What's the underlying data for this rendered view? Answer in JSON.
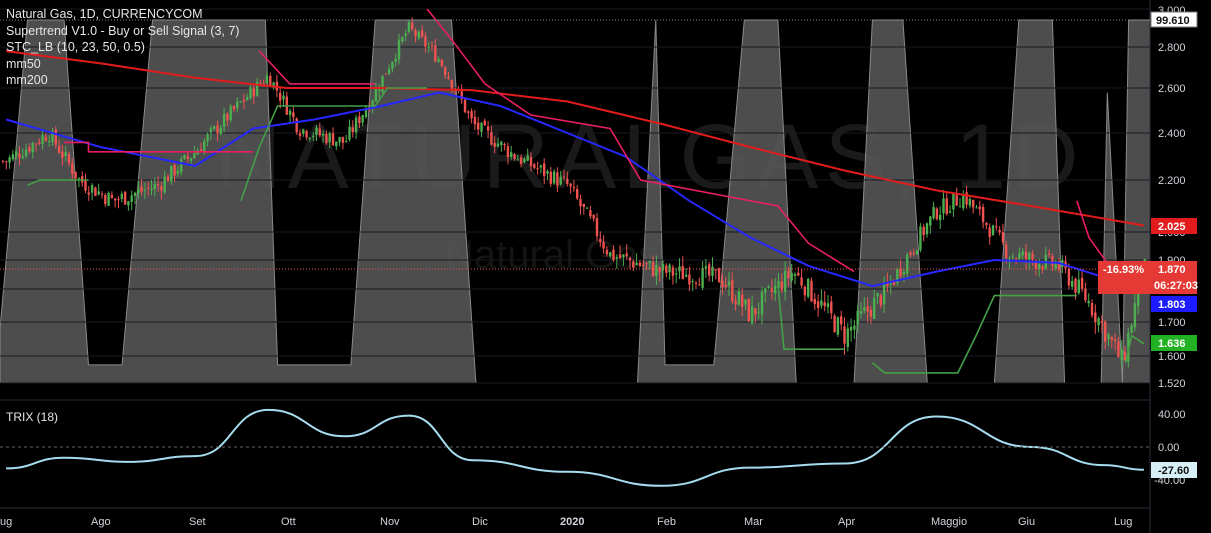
{
  "legend": {
    "title": "Natural Gas, 1D, CURRENCYCOM",
    "supertrend": "Supertrend V1.0 - Buy or Sell Signal (3, 7)",
    "stc": "STC_LB (10, 23, 50, 0.5)",
    "mm50": "mm50",
    "mm200": "mm200",
    "trix": "TRIX (18)"
  },
  "watermark": {
    "big": "NATURALGAS, 1D",
    "small": "Natural Gas"
  },
  "colors": {
    "background": "#000000",
    "up": "#4caf50",
    "down": "#ef5350",
    "mm50": "#2727ff",
    "mm200": "#e21c1c",
    "supertrend_up": "#43a047",
    "supertrend_down": "#e91e63",
    "stc_fill": "#5a5a5a",
    "trix_line": "#a6dcef"
  },
  "price_axis": {
    "ticks": [
      "3.000",
      "2.800",
      "2.600",
      "2.400",
      "2.200",
      "2.000",
      "1.900",
      "1.800",
      "1.700",
      "1.600",
      "1.520"
    ]
  },
  "trix_axis": {
    "ticks": [
      "40.00",
      "0.00",
      "-40.00"
    ]
  },
  "price_tags": {
    "stc": "99.610",
    "mm200": "2.025",
    "change": "-16.93%",
    "last": "1.870",
    "countdown": "06:27:03",
    "mm50": "1.803",
    "supertrend": "1.636",
    "trix": "-27.60"
  },
  "time_axis": {
    "labels": [
      "ug",
      "Ago",
      "Set",
      "Ott",
      "Nov",
      "Dic",
      "2020",
      "Feb",
      "Mar",
      "Apr",
      "Maggio",
      "Giu",
      "Lug"
    ]
  },
  "chart_data": {
    "type": "candlestick",
    "price_range": [
      1.52,
      3.0
    ],
    "last_price": 1.87,
    "change_percent": "-16.93%",
    "countdown": "06:27:03",
    "price_series": [
      [
        "2019-07-01",
        2.28
      ],
      [
        "2019-07-15",
        2.4
      ],
      [
        "2019-07-25",
        2.2
      ],
      [
        "2019-08-05",
        2.12
      ],
      [
        "2019-08-20",
        2.18
      ],
      [
        "2019-09-01",
        2.32
      ],
      [
        "2019-09-15",
        2.52
      ],
      [
        "2019-09-25",
        2.66
      ],
      [
        "2019-10-05",
        2.42
      ],
      [
        "2019-10-20",
        2.36
      ],
      [
        "2019-10-30",
        2.58
      ],
      [
        "2019-11-10",
        2.9
      ],
      [
        "2019-11-20",
        2.74
      ],
      [
        "2019-12-01",
        2.44
      ],
      [
        "2019-12-15",
        2.3
      ],
      [
        "2020-01-01",
        2.18
      ],
      [
        "2020-01-15",
        1.92
      ],
      [
        "2020-02-01",
        1.86
      ],
      [
        "2020-02-20",
        1.84
      ],
      [
        "2020-03-01",
        1.72
      ],
      [
        "2020-03-15",
        1.86
      ],
      [
        "2020-04-01",
        1.66
      ],
      [
        "2020-04-15",
        1.8
      ],
      [
        "2020-05-01",
        2.08
      ],
      [
        "2020-05-10",
        2.14
      ],
      [
        "2020-05-25",
        1.92
      ],
      [
        "2020-06-10",
        1.88
      ],
      [
        "2020-06-20",
        1.76
      ],
      [
        "2020-07-01",
        1.58
      ],
      [
        "2020-07-08",
        1.87
      ]
    ],
    "series": [
      {
        "name": "mm50",
        "values": [
          [
            "2019-07-01",
            2.46
          ],
          [
            "2019-08-01",
            2.34
          ],
          [
            "2019-09-01",
            2.26
          ],
          [
            "2019-09-20",
            2.42
          ],
          [
            "2019-10-10",
            2.46
          ],
          [
            "2019-11-01",
            2.52
          ],
          [
            "2019-11-20",
            2.58
          ],
          [
            "2019-12-10",
            2.52
          ],
          [
            "2020-01-01",
            2.4
          ],
          [
            "2020-01-20",
            2.3
          ],
          [
            "2020-02-10",
            2.12
          ],
          [
            "2020-03-01",
            1.98
          ],
          [
            "2020-03-20",
            1.88
          ],
          [
            "2020-04-10",
            1.81
          ],
          [
            "2020-05-01",
            1.86
          ],
          [
            "2020-05-20",
            1.9
          ],
          [
            "2020-06-10",
            1.89
          ],
          [
            "2020-06-25",
            1.84
          ],
          [
            "2020-07-08",
            1.803
          ]
        ]
      },
      {
        "name": "mm200",
        "values": [
          [
            "2019-07-01",
            2.78
          ],
          [
            "2019-08-01",
            2.72
          ],
          [
            "2019-09-01",
            2.65
          ],
          [
            "2019-10-01",
            2.6
          ],
          [
            "2019-11-01",
            2.6
          ],
          [
            "2019-12-01",
            2.59
          ],
          [
            "2020-01-01",
            2.54
          ],
          [
            "2020-02-01",
            2.44
          ],
          [
            "2020-03-01",
            2.34
          ],
          [
            "2020-04-01",
            2.24
          ],
          [
            "2020-05-01",
            2.16
          ],
          [
            "2020-06-01",
            2.1
          ],
          [
            "2020-07-08",
            2.025
          ]
        ]
      }
    ],
    "stc_last": 99.61,
    "supertrend_last": 1.636,
    "trix_range": [
      -60,
      60
    ],
    "trix": [
      [
        "2019-07-01",
        -26
      ],
      [
        "2019-07-20",
        -13
      ],
      [
        "2019-08-10",
        -18
      ],
      [
        "2019-09-01",
        -11
      ],
      [
        "2019-09-25",
        45
      ],
      [
        "2019-10-20",
        13
      ],
      [
        "2019-11-10",
        38
      ],
      [
        "2019-12-01",
        -16
      ],
      [
        "2020-01-01",
        -30
      ],
      [
        "2020-02-01",
        -47
      ],
      [
        "2020-03-01",
        -25
      ],
      [
        "2020-04-01",
        -20
      ],
      [
        "2020-05-01",
        37
      ],
      [
        "2020-06-01",
        0
      ],
      [
        "2020-06-25",
        -22
      ],
      [
        "2020-07-08",
        -27.6
      ]
    ]
  }
}
